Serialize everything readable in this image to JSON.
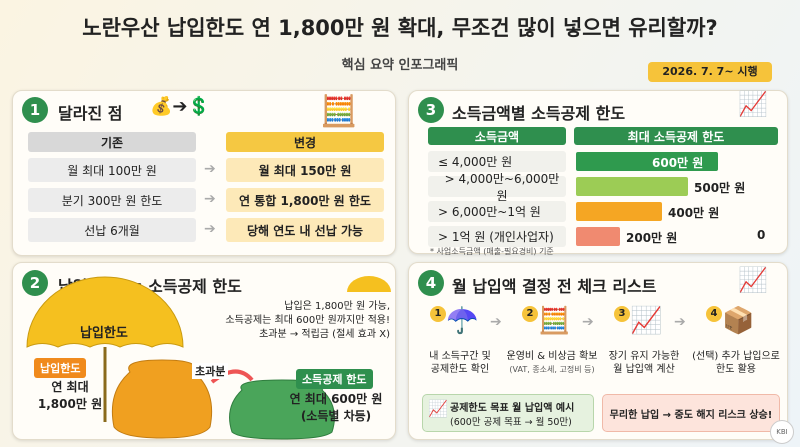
{
  "header": {
    "title": "노란우산 납입한도 연 1,800만 원 확대, 무조건 많이 넣으면 유리할까?",
    "subtitle": "핵심 요약 인포그래픽",
    "badge": "2026. 7. 7~ 시행"
  },
  "section1": {
    "number": "1",
    "title": "달라진 점",
    "headers": [
      "기존",
      "변경"
    ],
    "rows": [
      [
        "월 최대 100만 원",
        "월 최대 150만 원"
      ],
      [
        "분기 300만 원 한도",
        "연 통합 1,800만 원 한도"
      ],
      [
        "선납 6개월",
        "당해 연도 내 선납 가능"
      ]
    ]
  },
  "section2": {
    "number": "2",
    "title": "납입한도 vs 소득공제 한도",
    "umbrella_label": "납입한도",
    "left_badge": "납입한도",
    "left_text": "연 최대\n1,800만 원",
    "note": "납입은 1,800만 원 가능,\n소득공제는 최대 600만 원까지만 적용!\n초과분 → 적립금 (절세 효과 X)",
    "arrow_label": "초과분",
    "right_badge": "소득공제 한도",
    "right_text": "연 최대 600만 원\n(소득별 차등)"
  },
  "section3": {
    "number": "3",
    "title": "소득금액별 소득공제 한도",
    "headers": [
      "소득금액",
      "최대 소득공제 한도"
    ],
    "rows": [
      [
        "≤ 4,000만 원",
        "600만 원"
      ],
      [
        "> 4,000만~6,000만 원",
        "500만 원"
      ],
      [
        "> 6,000만~1억 원",
        "400만 원"
      ],
      [
        "> 1억 원 (개인사업자)",
        "200만 원"
      ]
    ],
    "extra": "0",
    "footnote": "* 사업소득금액 (매출-필요경비) 기준"
  },
  "section4": {
    "number": "4",
    "title": "월 납입액 결정 전 체크 리스트",
    "steps": [
      {
        "num": "1",
        "text": "내 소득구간 및\n공제한도 확인"
      },
      {
        "num": "2",
        "text": "운영비 & 비상금 확보",
        "sub": "(VAT, 종소세, 고정비 등)"
      },
      {
        "num": "3",
        "text": "장기 유지 가능한\n월 납입액 계산"
      },
      {
        "num": "4",
        "text": "(선택) 추가 납입으로\n한도 활용"
      }
    ],
    "example_title": "공제한도 목표 월 납입액 예시",
    "example_text": "(600만 공제 목표 → 월 50만)",
    "warning": "무리한 납입 → 중도 해지 리스크 상승!"
  },
  "logo": "KBI"
}
